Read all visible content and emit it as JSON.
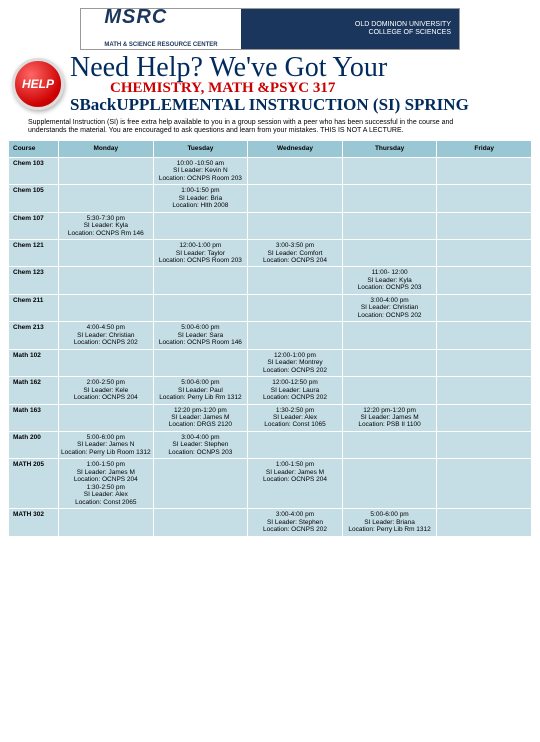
{
  "logo": {
    "left_big": "MSRC",
    "left_small": "MATH & SCIENCE RESOURCE CENTER",
    "right_line1": "OLD DOMINION UNIVERSITY",
    "right_line2": "COLLEGE OF SCIENCES"
  },
  "help_button": "HELP",
  "title_main": "Need Help? We've Got Your",
  "title_sub1": "CHEMISTRY, MATH &PSYC 317",
  "title_sub2_a": "S",
  "title_sub2_b": "Back",
  "title_sub2_c": "UPPLEMENTAL INSTRUCTION (SI) SPRING",
  "description": "Supplemental Instruction (SI) is free extra help available to you in a group session with a peer who has been successful in the course and understands the material. You are encouraged to ask questions and learn from your mistakes. THIS IS NOT A LECTURE.",
  "columns": [
    "Course",
    "Monday",
    "Tuesday",
    "Wednesday",
    "Thursday",
    "Friday"
  ],
  "rows": [
    {
      "course": "Chem 103",
      "cells": [
        "",
        "10:00 -10:50 am\nSI Leader: Kevin N\nLocation: OCNPS Room 203",
        "",
        "",
        ""
      ]
    },
    {
      "course": "Chem 105",
      "cells": [
        "",
        "1:00-1:50 pm\nSI Leader: Bria\nLocation: Hlth 2008",
        "",
        "",
        ""
      ]
    },
    {
      "course": "Chem 107",
      "cells": [
        "5:30-7:30 pm\nSI Leader: Kyla\nLocation: OCNPS Rm 146",
        "",
        "",
        "",
        ""
      ]
    },
    {
      "course": "Chem 121",
      "cells": [
        "",
        "12:00-1:00 pm\nSI Leader: Taylor\nLocation: OCNPS Room 203",
        "3:00-3:50 pm\nSI Leader: Comfort\nLocation: OCNPS 204",
        "",
        ""
      ]
    },
    {
      "course": "Chem 123",
      "cells": [
        "",
        "",
        "",
        "11:00- 12:00\nSI Leader: Kyla\nLocation: OCNPS 203",
        ""
      ]
    },
    {
      "course": "Chem 211",
      "cells": [
        "",
        "",
        "",
        "3:00-4:00 pm\nSI Leader: Christian\nLocation: OCNPS 202",
        ""
      ]
    },
    {
      "course": "Chem 213",
      "cells": [
        "4:00-4:50 pm\nSI Leader: Christian\nLocation: OCNPS 202",
        "5:00-6:00 pm\nSI Leader: Sara\nLocation: OCNPS Room 146",
        "",
        "",
        ""
      ]
    },
    {
      "course": "Math 102",
      "cells": [
        "",
        "",
        "12:00-1:00 pm\nSI Leader: Montrey\nLocation: OCNPS 202",
        "",
        ""
      ]
    },
    {
      "course": "Math 162",
      "cells": [
        "2:00-2:50 pm\nSI Leader: Kele\nLocation: OCNPS 204",
        "5:00-6:00 pm\nSI Leader: Paul\nLocation: Perry Lib Rm 1312",
        "12:00-12:50 pm\nSI Leader: Laura\nLocation: OCNPS 202",
        "",
        ""
      ]
    },
    {
      "course": "Math 163",
      "cells": [
        "",
        "12:20 pm-1:20 pm\nSI Leader: James M\nLocation: DRGS 2120",
        "1:30-2:50 pm\nSI Leader: Alex\nLocation: Const 1065",
        "12:20 pm-1:20 pm\nSI Leader: James M\nLocation: PSB II 1100",
        ""
      ]
    },
    {
      "course": "Math 200",
      "cells": [
        "5:00-6:00 pm\nSI Leader: James N\nLocation: Perry Lib Room 1312",
        "3:00-4:00 pm\nSI Leader: Stephen\nLocation: OCNPS 203",
        "",
        "",
        ""
      ]
    },
    {
      "course": "MATH 205",
      "cells": [
        "1:00-1:50 pm\nSI Leader: James M\nLocation: OCNPS 204\n1:30-2:50 pm\nSI Leader: Alex\nLocation: Const 2065",
        "",
        "1:00-1:50 pm\nSI Leader: James M\nLocation: OCNPS 204",
        "",
        ""
      ]
    },
    {
      "course": "MATH 302",
      "cells": [
        "",
        "",
        "3:00-4:00 pm\nSI Leader: Stephen\nLocation: OCNPS 202",
        "5:00-6:00 pm\nSI Leader: Briana\nLocation: Perry Lib Rm 1312",
        ""
      ]
    }
  ]
}
